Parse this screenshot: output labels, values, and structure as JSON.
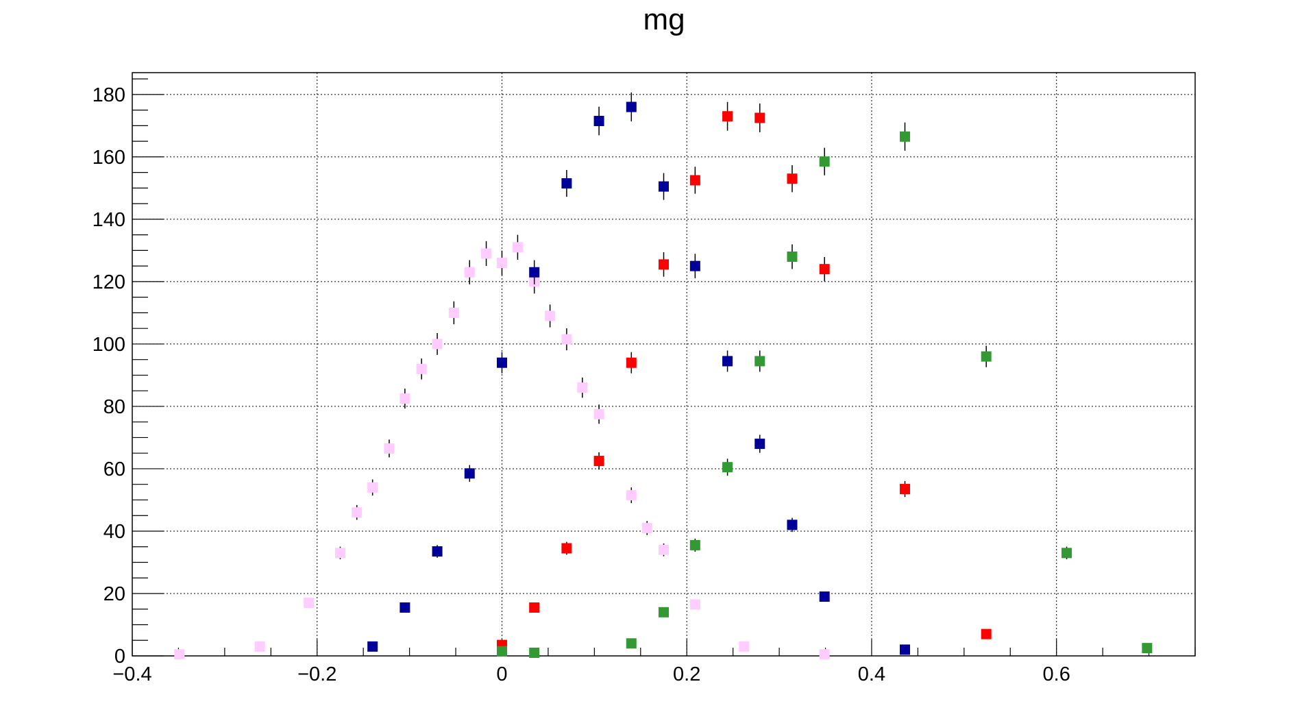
{
  "chart_data": {
    "type": "scatter",
    "title": "mg",
    "xlabel": "",
    "ylabel": "",
    "xlim": [
      -0.4,
      0.75
    ],
    "ylim": [
      0,
      187
    ],
    "grid": true,
    "x_ticks": [
      -0.4,
      -0.2,
      0,
      0.2,
      0.4,
      0.6
    ],
    "x_tick_labels": [
      "−0.4",
      "−0.2",
      "0",
      "0.2",
      "0.4",
      "0.6"
    ],
    "y_ticks": [
      0,
      20,
      40,
      60,
      80,
      100,
      120,
      140,
      160,
      180
    ],
    "y_tick_labels": [
      "0",
      "20",
      "40",
      "60",
      "80",
      "100",
      "120",
      "140",
      "160",
      "180"
    ],
    "series": [
      {
        "color": "#ffccff",
        "marker": "square",
        "points": [
          {
            "x": -0.349,
            "y": 0.5
          },
          {
            "x": -0.262,
            "y": 3
          },
          {
            "x": -0.209,
            "y": 17
          },
          {
            "x": -0.175,
            "y": 33
          },
          {
            "x": -0.157,
            "y": 46
          },
          {
            "x": -0.14,
            "y": 54
          },
          {
            "x": -0.122,
            "y": 66.5
          },
          {
            "x": -0.105,
            "y": 82.5
          },
          {
            "x": -0.087,
            "y": 92
          },
          {
            "x": -0.07,
            "y": 100
          },
          {
            "x": -0.052,
            "y": 110
          },
          {
            "x": -0.035,
            "y": 123
          },
          {
            "x": -0.017,
            "y": 129
          },
          {
            "x": 0.0,
            "y": 126
          },
          {
            "x": 0.017,
            "y": 131
          },
          {
            "x": 0.035,
            "y": 120
          },
          {
            "x": 0.052,
            "y": 109
          },
          {
            "x": 0.07,
            "y": 101.5
          },
          {
            "x": 0.087,
            "y": 86
          },
          {
            "x": 0.105,
            "y": 77.5
          },
          {
            "x": 0.14,
            "y": 51.5
          },
          {
            "x": 0.157,
            "y": 41
          },
          {
            "x": 0.175,
            "y": 34
          },
          {
            "x": 0.209,
            "y": 16.5
          },
          {
            "x": 0.262,
            "y": 3
          },
          {
            "x": 0.349,
            "y": 0.5
          }
        ]
      },
      {
        "color": "#000099",
        "marker": "square",
        "points": [
          {
            "x": -0.14,
            "y": 3
          },
          {
            "x": -0.105,
            "y": 15.5
          },
          {
            "x": -0.07,
            "y": 33.5
          },
          {
            "x": -0.035,
            "y": 58.5
          },
          {
            "x": 0.0,
            "y": 94
          },
          {
            "x": 0.035,
            "y": 123
          },
          {
            "x": 0.07,
            "y": 151.5
          },
          {
            "x": 0.105,
            "y": 171.5
          },
          {
            "x": 0.14,
            "y": 176
          },
          {
            "x": 0.175,
            "y": 150.5
          },
          {
            "x": 0.209,
            "y": 125
          },
          {
            "x": 0.244,
            "y": 94.5
          },
          {
            "x": 0.279,
            "y": 68
          },
          {
            "x": 0.314,
            "y": 42
          },
          {
            "x": 0.349,
            "y": 19
          },
          {
            "x": 0.436,
            "y": 2
          }
        ]
      },
      {
        "color": "#ff0000",
        "marker": "square",
        "points": [
          {
            "x": 0.0,
            "y": 3.5
          },
          {
            "x": 0.035,
            "y": 15.5
          },
          {
            "x": 0.07,
            "y": 34.5
          },
          {
            "x": 0.105,
            "y": 62.5
          },
          {
            "x": 0.14,
            "y": 94
          },
          {
            "x": 0.175,
            "y": 125.5
          },
          {
            "x": 0.209,
            "y": 152.5
          },
          {
            "x": 0.244,
            "y": 173
          },
          {
            "x": 0.279,
            "y": 172.5
          },
          {
            "x": 0.314,
            "y": 153
          },
          {
            "x": 0.349,
            "y": 124
          },
          {
            "x": 0.436,
            "y": 53.5
          },
          {
            "x": 0.524,
            "y": 7
          }
        ]
      },
      {
        "color": "#339933",
        "marker": "square",
        "points": [
          {
            "x": 0.0,
            "y": 1.5
          },
          {
            "x": 0.035,
            "y": 1
          },
          {
            "x": 0.14,
            "y": 4
          },
          {
            "x": 0.175,
            "y": 14
          },
          {
            "x": 0.209,
            "y": 35.5
          },
          {
            "x": 0.244,
            "y": 60.5
          },
          {
            "x": 0.279,
            "y": 94.5
          },
          {
            "x": 0.314,
            "y": 128
          },
          {
            "x": 0.349,
            "y": 158.5
          },
          {
            "x": 0.436,
            "y": 166.5
          },
          {
            "x": 0.524,
            "y": 96
          },
          {
            "x": 0.611,
            "y": 33
          },
          {
            "x": 0.698,
            "y": 2.5
          }
        ]
      }
    ]
  }
}
